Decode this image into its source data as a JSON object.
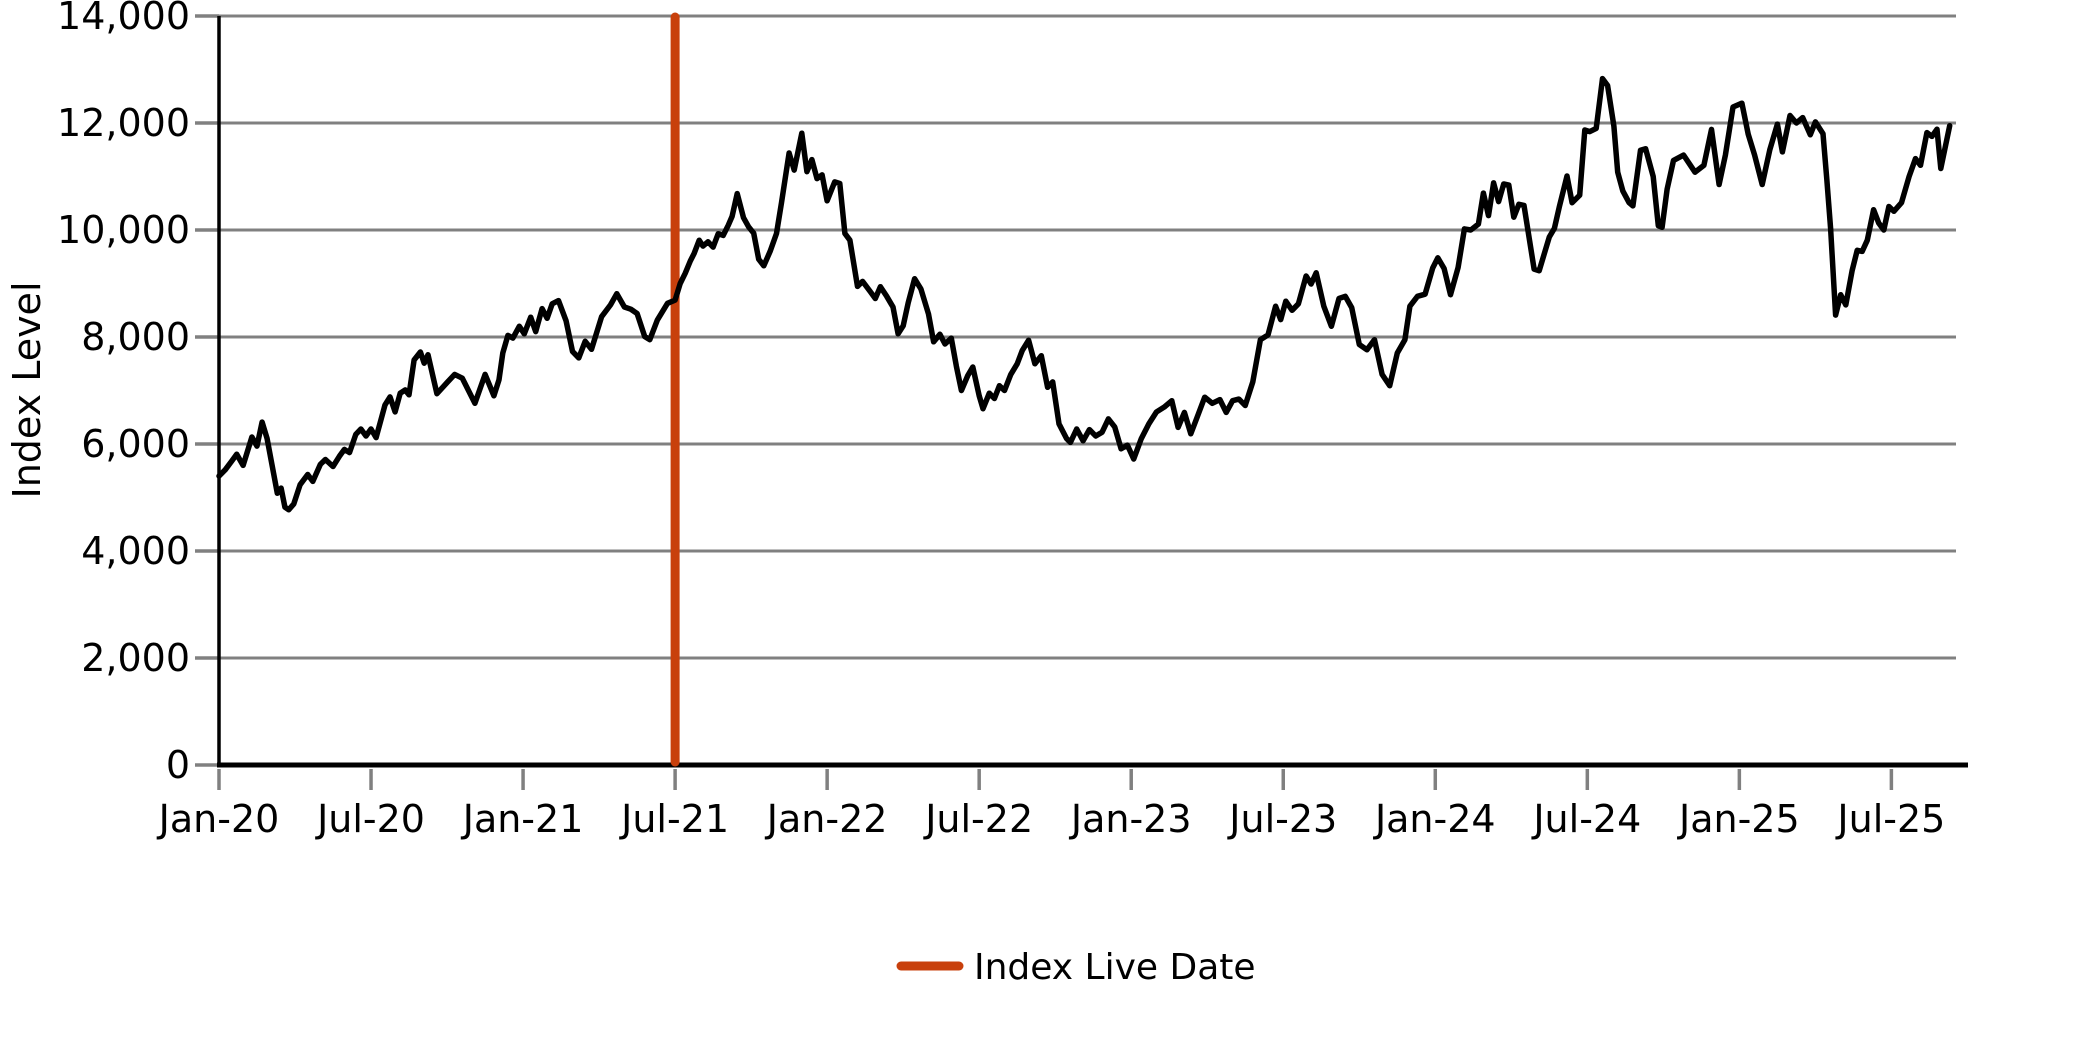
{
  "chart_data": {
    "type": "line",
    "title": "",
    "xlabel": "",
    "ylabel": "Index Level",
    "grid": "horizontal",
    "ylim": [
      0,
      14000
    ],
    "x_axis_months_total": 68.55,
    "y_ticks": [
      {
        "value": 0,
        "label": "0"
      },
      {
        "value": 2000,
        "label": "2,000"
      },
      {
        "value": 4000,
        "label": "4,000"
      },
      {
        "value": 6000,
        "label": "6,000"
      },
      {
        "value": 8000,
        "label": "8,000"
      },
      {
        "value": 10000,
        "label": "10,000"
      },
      {
        "value": 12000,
        "label": "12,000"
      },
      {
        "value": 14000,
        "label": "14,000"
      }
    ],
    "x_ticks": [
      {
        "month": 0,
        "label": "Jan-20"
      },
      {
        "month": 6,
        "label": "Jul-20"
      },
      {
        "month": 12,
        "label": "Jan-21"
      },
      {
        "month": 18,
        "label": "Jul-21"
      },
      {
        "month": 24,
        "label": "Jan-22"
      },
      {
        "month": 30,
        "label": "Jul-22"
      },
      {
        "month": 36,
        "label": "Jan-23"
      },
      {
        "month": 42,
        "label": "Jul-23"
      },
      {
        "month": 48,
        "label": "Jan-24"
      },
      {
        "month": 54,
        "label": "Jul-24"
      },
      {
        "month": 60,
        "label": "Jan-25"
      },
      {
        "month": 66,
        "label": "Jul-25"
      }
    ],
    "vline": {
      "label": "Index Live Date",
      "month": 18,
      "x_tick_label": "Jul-21",
      "color": "#C8400C"
    },
    "legend": {
      "label": "Index Live Date",
      "swatch_color": "#C8400C",
      "position": "bottom-center"
    },
    "colors": {
      "series": "#000000",
      "grid": "#808080",
      "tick": "#808080",
      "spine": "#000000",
      "text": "#000000",
      "background": "#ffffff"
    },
    "series": [
      {
        "name": "Index Level",
        "color": "#000000",
        "points": [
          [
            0,
            5400
          ],
          [
            0.25,
            5520
          ],
          [
            0.5,
            5680
          ],
          [
            0.7,
            5810
          ],
          [
            0.95,
            5600
          ],
          [
            1.3,
            6130
          ],
          [
            1.5,
            5960
          ],
          [
            1.7,
            6410
          ],
          [
            1.9,
            6100
          ],
          [
            2.1,
            5590
          ],
          [
            2.3,
            5080
          ],
          [
            2.45,
            5175
          ],
          [
            2.6,
            4820
          ],
          [
            2.75,
            4770
          ],
          [
            2.95,
            4880
          ],
          [
            3.2,
            5240
          ],
          [
            3.5,
            5430
          ],
          [
            3.7,
            5300
          ],
          [
            4.0,
            5620
          ],
          [
            4.2,
            5710
          ],
          [
            4.5,
            5580
          ],
          [
            4.75,
            5770
          ],
          [
            4.95,
            5900
          ],
          [
            5.15,
            5840
          ],
          [
            5.4,
            6180
          ],
          [
            5.6,
            6280
          ],
          [
            5.8,
            6150
          ],
          [
            6.0,
            6280
          ],
          [
            6.2,
            6120
          ],
          [
            6.55,
            6730
          ],
          [
            6.75,
            6880
          ],
          [
            6.95,
            6600
          ],
          [
            7.15,
            6950
          ],
          [
            7.35,
            7010
          ],
          [
            7.5,
            6920
          ],
          [
            7.7,
            7570
          ],
          [
            7.95,
            7720
          ],
          [
            8.1,
            7510
          ],
          [
            8.25,
            7670
          ],
          [
            8.6,
            6940
          ],
          [
            9.0,
            7150
          ],
          [
            9.3,
            7300
          ],
          [
            9.6,
            7230
          ],
          [
            10.1,
            6760
          ],
          [
            10.5,
            7300
          ],
          [
            10.85,
            6900
          ],
          [
            11.05,
            7200
          ],
          [
            11.2,
            7700
          ],
          [
            11.4,
            8030
          ],
          [
            11.6,
            7980
          ],
          [
            11.85,
            8200
          ],
          [
            12.05,
            8060
          ],
          [
            12.3,
            8370
          ],
          [
            12.5,
            8100
          ],
          [
            12.75,
            8530
          ],
          [
            12.95,
            8350
          ],
          [
            13.15,
            8620
          ],
          [
            13.4,
            8680
          ],
          [
            13.7,
            8300
          ],
          [
            13.95,
            7730
          ],
          [
            14.2,
            7610
          ],
          [
            14.45,
            7920
          ],
          [
            14.7,
            7770
          ],
          [
            15.1,
            8380
          ],
          [
            15.45,
            8600
          ],
          [
            15.7,
            8810
          ],
          [
            16.0,
            8560
          ],
          [
            16.25,
            8520
          ],
          [
            16.5,
            8440
          ],
          [
            16.8,
            8010
          ],
          [
            17.0,
            7950
          ],
          [
            17.3,
            8320
          ],
          [
            17.7,
            8630
          ],
          [
            18.0,
            8690
          ],
          [
            18.2,
            9000
          ],
          [
            18.4,
            9190
          ],
          [
            18.6,
            9420
          ],
          [
            18.75,
            9560
          ],
          [
            18.95,
            9810
          ],
          [
            19.1,
            9700
          ],
          [
            19.3,
            9780
          ],
          [
            19.5,
            9680
          ],
          [
            19.7,
            9930
          ],
          [
            19.9,
            9900
          ],
          [
            20.1,
            10090
          ],
          [
            20.25,
            10255
          ],
          [
            20.45,
            10680
          ],
          [
            20.7,
            10230
          ],
          [
            20.9,
            10060
          ],
          [
            21.1,
            9940
          ],
          [
            21.3,
            9455
          ],
          [
            21.5,
            9330
          ],
          [
            21.75,
            9600
          ],
          [
            22.0,
            9935
          ],
          [
            22.2,
            10510
          ],
          [
            22.5,
            11440
          ],
          [
            22.7,
            11120
          ],
          [
            23.0,
            11810
          ],
          [
            23.2,
            11090
          ],
          [
            23.4,
            11315
          ],
          [
            23.6,
            10960
          ],
          [
            23.8,
            11030
          ],
          [
            24.0,
            10545
          ],
          [
            24.3,
            10900
          ],
          [
            24.5,
            10870
          ],
          [
            24.7,
            9935
          ],
          [
            24.9,
            9810
          ],
          [
            25.2,
            8945
          ],
          [
            25.4,
            9040
          ],
          [
            25.7,
            8850
          ],
          [
            25.9,
            8720
          ],
          [
            26.1,
            8940
          ],
          [
            26.35,
            8760
          ],
          [
            26.6,
            8560
          ],
          [
            26.8,
            8060
          ],
          [
            27.0,
            8210
          ],
          [
            27.2,
            8640
          ],
          [
            27.45,
            9090
          ],
          [
            27.7,
            8900
          ],
          [
            28.0,
            8430
          ],
          [
            28.2,
            7910
          ],
          [
            28.45,
            8050
          ],
          [
            28.65,
            7870
          ],
          [
            28.9,
            7980
          ],
          [
            29.1,
            7450
          ],
          [
            29.3,
            7000
          ],
          [
            29.55,
            7280
          ],
          [
            29.75,
            7440
          ],
          [
            30.0,
            6900
          ],
          [
            30.15,
            6660
          ],
          [
            30.4,
            6950
          ],
          [
            30.6,
            6850
          ],
          [
            30.8,
            7090
          ],
          [
            31.0,
            7000
          ],
          [
            31.25,
            7300
          ],
          [
            31.5,
            7500
          ],
          [
            31.7,
            7750
          ],
          [
            31.95,
            7940
          ],
          [
            32.2,
            7500
          ],
          [
            32.45,
            7650
          ],
          [
            32.7,
            7060
          ],
          [
            32.9,
            7160
          ],
          [
            33.15,
            6375
          ],
          [
            33.45,
            6100
          ],
          [
            33.6,
            6030
          ],
          [
            33.85,
            6280
          ],
          [
            34.1,
            6060
          ],
          [
            34.35,
            6270
          ],
          [
            34.6,
            6150
          ],
          [
            34.85,
            6220
          ],
          [
            35.1,
            6470
          ],
          [
            35.35,
            6320
          ],
          [
            35.6,
            5910
          ],
          [
            35.85,
            5980
          ],
          [
            36.1,
            5720
          ],
          [
            36.4,
            6100
          ],
          [
            36.7,
            6380
          ],
          [
            37.0,
            6600
          ],
          [
            37.3,
            6690
          ],
          [
            37.6,
            6810
          ],
          [
            37.85,
            6310
          ],
          [
            38.1,
            6590
          ],
          [
            38.35,
            6190
          ],
          [
            38.6,
            6500
          ],
          [
            38.9,
            6875
          ],
          [
            39.2,
            6760
          ],
          [
            39.5,
            6830
          ],
          [
            39.75,
            6590
          ],
          [
            40.0,
            6810
          ],
          [
            40.25,
            6840
          ],
          [
            40.5,
            6720
          ],
          [
            40.8,
            7160
          ],
          [
            41.1,
            7950
          ],
          [
            41.4,
            8040
          ],
          [
            41.7,
            8575
          ],
          [
            41.9,
            8325
          ],
          [
            42.1,
            8670
          ],
          [
            42.35,
            8500
          ],
          [
            42.6,
            8620
          ],
          [
            42.9,
            9140
          ],
          [
            43.1,
            8990
          ],
          [
            43.3,
            9200
          ],
          [
            43.6,
            8575
          ],
          [
            43.9,
            8200
          ],
          [
            44.2,
            8720
          ],
          [
            44.45,
            8760
          ],
          [
            44.7,
            8550
          ],
          [
            45.0,
            7860
          ],
          [
            45.3,
            7760
          ],
          [
            45.6,
            7950
          ],
          [
            45.9,
            7300
          ],
          [
            46.2,
            7090
          ],
          [
            46.5,
            7700
          ],
          [
            46.8,
            7950
          ],
          [
            47.0,
            8575
          ],
          [
            47.3,
            8760
          ],
          [
            47.6,
            8800
          ],
          [
            47.9,
            9290
          ],
          [
            48.1,
            9480
          ],
          [
            48.35,
            9280
          ],
          [
            48.6,
            8790
          ],
          [
            48.9,
            9300
          ],
          [
            49.15,
            10020
          ],
          [
            49.4,
            10000
          ],
          [
            49.7,
            10110
          ],
          [
            49.9,
            10690
          ],
          [
            50.1,
            10270
          ],
          [
            50.3,
            10880
          ],
          [
            50.5,
            10530
          ],
          [
            50.7,
            10860
          ],
          [
            50.9,
            10840
          ],
          [
            51.1,
            10240
          ],
          [
            51.3,
            10480
          ],
          [
            51.5,
            10460
          ],
          [
            51.9,
            9270
          ],
          [
            52.1,
            9240
          ],
          [
            52.5,
            9870
          ],
          [
            52.7,
            10030
          ],
          [
            52.9,
            10440
          ],
          [
            53.2,
            11010
          ],
          [
            53.4,
            10510
          ],
          [
            53.7,
            10650
          ],
          [
            53.9,
            11870
          ],
          [
            54.1,
            11840
          ],
          [
            54.35,
            11900
          ],
          [
            54.6,
            12830
          ],
          [
            54.8,
            12700
          ],
          [
            55.05,
            11940
          ],
          [
            55.2,
            11080
          ],
          [
            55.4,
            10730
          ],
          [
            55.65,
            10510
          ],
          [
            55.8,
            10450
          ],
          [
            56.1,
            11490
          ],
          [
            56.3,
            11520
          ],
          [
            56.6,
            11000
          ],
          [
            56.8,
            10080
          ],
          [
            56.95,
            10050
          ],
          [
            57.15,
            10760
          ],
          [
            57.4,
            11300
          ],
          [
            57.8,
            11400
          ],
          [
            58.25,
            11080
          ],
          [
            58.6,
            11210
          ],
          [
            58.9,
            11880
          ],
          [
            59.2,
            10850
          ],
          [
            59.45,
            11400
          ],
          [
            59.75,
            12300
          ],
          [
            60.1,
            12370
          ],
          [
            60.35,
            11790
          ],
          [
            60.6,
            11400
          ],
          [
            60.9,
            10850
          ],
          [
            61.2,
            11500
          ],
          [
            61.5,
            11980
          ],
          [
            61.7,
            11460
          ],
          [
            62.0,
            12140
          ],
          [
            62.25,
            12000
          ],
          [
            62.5,
            12100
          ],
          [
            62.8,
            11780
          ],
          [
            63.0,
            12020
          ],
          [
            63.3,
            11800
          ],
          [
            63.45,
            10950
          ],
          [
            63.6,
            10030
          ],
          [
            63.8,
            8410
          ],
          [
            64.0,
            8790
          ],
          [
            64.2,
            8600
          ],
          [
            64.45,
            9240
          ],
          [
            64.65,
            9620
          ],
          [
            64.85,
            9600
          ],
          [
            65.05,
            9810
          ],
          [
            65.3,
            10380
          ],
          [
            65.5,
            10130
          ],
          [
            65.7,
            10000
          ],
          [
            65.9,
            10440
          ],
          [
            66.1,
            10350
          ],
          [
            66.4,
            10510
          ],
          [
            66.7,
            11000
          ],
          [
            66.95,
            11335
          ],
          [
            67.15,
            11210
          ],
          [
            67.4,
            11820
          ],
          [
            67.6,
            11750
          ],
          [
            67.8,
            11885
          ],
          [
            67.95,
            11150
          ],
          [
            68.3,
            11950
          ]
        ]
      }
    ]
  }
}
